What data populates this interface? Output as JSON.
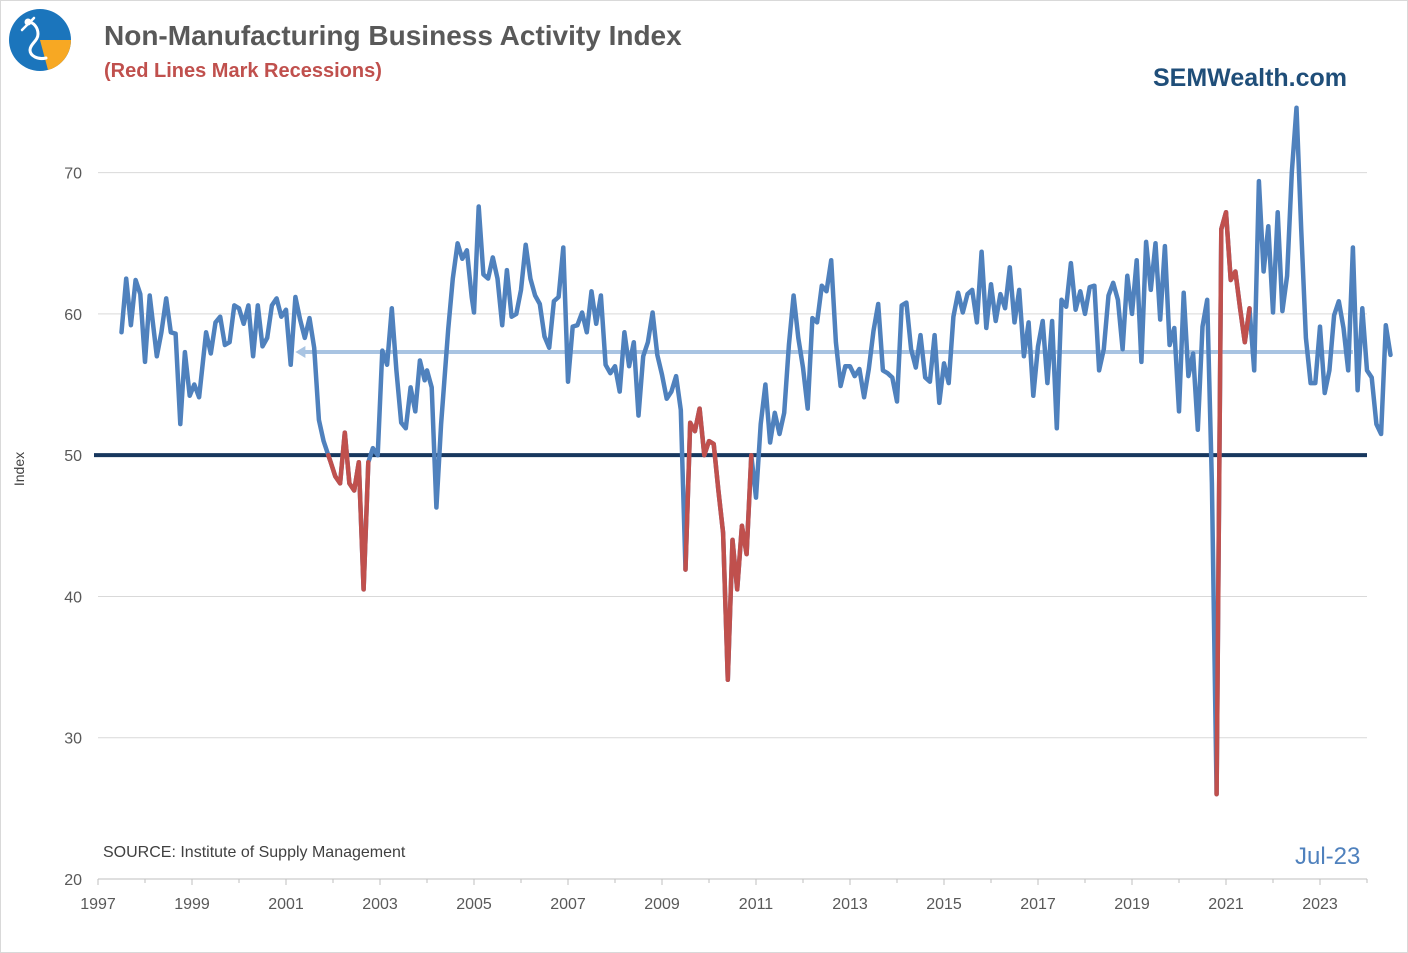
{
  "header": {
    "title": "Non-Manufacturing Business Activity Index",
    "subtitle": "(Red Lines Mark Recessions)",
    "brand": "SEMWealth.com"
  },
  "footer": {
    "source": "SOURCE:  Institute of Supply Management",
    "date_label": "Jul-23"
  },
  "colors": {
    "series": "#4f81bd",
    "recession": "#c0504d",
    "threshold": "#17375e",
    "average": "#a9c4e2",
    "grid": "#d9d9d9",
    "title": "#595959",
    "brand": "#1f4e79",
    "logo_circle": "#1b75bc",
    "logo_accent": "#f7a823"
  },
  "logo_icon": "semwealth-logo-icon",
  "chart_data": {
    "type": "line",
    "title": "Non-Manufacturing Business Activity Index",
    "subtitle": "(Red Lines Mark Recessions)",
    "xlabel": "",
    "ylabel": "Index",
    "xlim": [
      1997.0,
      2024.0
    ],
    "ylim": [
      20,
      75
    ],
    "yticks": [
      20,
      30,
      40,
      50,
      60,
      70
    ],
    "ytick_labels": [
      "20",
      "30",
      "40",
      "50",
      "60",
      "70"
    ],
    "xticks": [
      1997,
      1999,
      2001,
      2003,
      2005,
      2007,
      2009,
      2011,
      2013,
      2015,
      2017,
      2019,
      2021,
      2023
    ],
    "xtick_labels": [
      "1997",
      "1999",
      "2001",
      "2003",
      "2005",
      "2007",
      "2009",
      "2011",
      "2013",
      "2015",
      "2017",
      "2019",
      "2021",
      "2023"
    ],
    "grid": true,
    "reference_lines": [
      {
        "kind": "threshold",
        "y": 50
      },
      {
        "kind": "average",
        "y": 57.3,
        "x_start": 2001.2,
        "x_end": 2023.7,
        "arrow": "left"
      }
    ],
    "recessions": [
      [
        2001.2,
        2001.9
      ],
      [
        2007.9,
        2009.5
      ],
      [
        2020.1,
        2020.9
      ]
    ],
    "series": [
      {
        "points": [
          [
            1997.5,
            58.7
          ],
          [
            1997.6,
            62.5
          ],
          [
            1997.7,
            59.2
          ],
          [
            1997.8,
            62.4
          ],
          [
            1997.9,
            61.4
          ],
          [
            1998.0,
            56.6
          ],
          [
            1998.1,
            61.3
          ],
          [
            1998.25,
            57.0
          ],
          [
            1998.35,
            58.7
          ],
          [
            1998.45,
            61.1
          ],
          [
            1998.55,
            58.7
          ],
          [
            1998.65,
            58.6
          ],
          [
            1998.75,
            52.2
          ],
          [
            1998.85,
            57.3
          ],
          [
            1998.95,
            54.2
          ],
          [
            1999.05,
            55.0
          ],
          [
            1999.15,
            54.1
          ],
          [
            1999.3,
            58.7
          ],
          [
            1999.4,
            57.2
          ],
          [
            1999.5,
            59.4
          ],
          [
            1999.6,
            59.8
          ],
          [
            1999.7,
            57.8
          ],
          [
            1999.8,
            58.0
          ],
          [
            1999.9,
            60.6
          ],
          [
            2000.0,
            60.4
          ],
          [
            2000.1,
            59.3
          ],
          [
            2000.2,
            60.6
          ],
          [
            2000.3,
            57.0
          ],
          [
            2000.4,
            60.6
          ],
          [
            2000.5,
            57.7
          ],
          [
            2000.6,
            58.3
          ],
          [
            2000.7,
            60.6
          ],
          [
            2000.8,
            61.1
          ],
          [
            2000.9,
            59.8
          ],
          [
            2001.0,
            60.3
          ],
          [
            2001.1,
            56.4
          ],
          [
            2001.2,
            61.2
          ],
          [
            2001.3,
            59.6
          ],
          [
            2001.4,
            58.3
          ],
          [
            2001.5,
            59.7
          ],
          [
            2001.6,
            57.6
          ],
          [
            2001.7,
            52.5
          ],
          [
            2001.8,
            51.0
          ],
          [
            2001.9,
            50.0
          ],
          [
            2001.95,
            49.5
          ],
          [
            2002.05,
            48.5
          ],
          [
            2002.15,
            48.0
          ],
          [
            2002.25,
            51.6
          ],
          [
            2002.35,
            48.0
          ],
          [
            2002.45,
            47.5
          ],
          [
            2002.55,
            49.5
          ],
          [
            2002.65,
            40.5
          ],
          [
            2002.75,
            49.5
          ],
          [
            2002.85,
            50.5
          ],
          [
            2002.95,
            50.0
          ],
          [
            2003.05,
            57.4
          ],
          [
            2003.15,
            56.4
          ],
          [
            2003.25,
            60.4
          ],
          [
            2003.35,
            56.0
          ],
          [
            2003.45,
            52.3
          ],
          [
            2003.55,
            51.9
          ],
          [
            2003.65,
            54.8
          ],
          [
            2003.75,
            53.1
          ],
          [
            2003.85,
            56.7
          ],
          [
            2003.95,
            55.3
          ],
          [
            2004.0,
            56.0
          ],
          [
            2004.1,
            54.8
          ],
          [
            2004.2,
            46.3
          ],
          [
            2004.3,
            52.2
          ],
          [
            2004.45,
            58.9
          ],
          [
            2004.55,
            62.5
          ],
          [
            2004.65,
            65.0
          ],
          [
            2004.75,
            63.9
          ],
          [
            2004.85,
            64.5
          ],
          [
            2004.95,
            61.2
          ],
          [
            2005.0,
            60.1
          ],
          [
            2005.1,
            67.6
          ],
          [
            2005.2,
            62.8
          ],
          [
            2005.3,
            62.5
          ],
          [
            2005.4,
            64.0
          ],
          [
            2005.5,
            62.5
          ],
          [
            2005.6,
            59.2
          ],
          [
            2005.7,
            63.1
          ],
          [
            2005.8,
            59.8
          ],
          [
            2005.9,
            60.0
          ],
          [
            2006.0,
            61.7
          ],
          [
            2006.1,
            64.9
          ],
          [
            2006.2,
            62.5
          ],
          [
            2006.3,
            61.3
          ],
          [
            2006.4,
            60.7
          ],
          [
            2006.5,
            58.4
          ],
          [
            2006.6,
            57.6
          ],
          [
            2006.7,
            60.9
          ],
          [
            2006.8,
            61.2
          ],
          [
            2006.9,
            64.7
          ],
          [
            2007.0,
            55.2
          ],
          [
            2007.1,
            59.1
          ],
          [
            2007.2,
            59.2
          ],
          [
            2007.3,
            60.1
          ],
          [
            2007.4,
            58.7
          ],
          [
            2007.5,
            61.6
          ],
          [
            2007.6,
            59.3
          ],
          [
            2007.7,
            61.3
          ],
          [
            2007.8,
            56.4
          ],
          [
            2007.9,
            55.8
          ],
          [
            2008.0,
            56.3
          ],
          [
            2008.1,
            54.5
          ],
          [
            2008.2,
            58.7
          ],
          [
            2008.3,
            56.3
          ],
          [
            2008.4,
            58.0
          ],
          [
            2008.5,
            52.8
          ],
          [
            2008.6,
            57.0
          ],
          [
            2008.7,
            58.0
          ],
          [
            2008.8,
            60.1
          ],
          [
            2008.9,
            57.1
          ],
          [
            2009.0,
            55.7
          ],
          [
            2009.1,
            54.0
          ],
          [
            2009.2,
            54.5
          ],
          [
            2009.3,
            55.6
          ],
          [
            2009.4,
            53.2
          ],
          [
            2009.5,
            41.9
          ],
          [
            2009.6,
            52.3
          ],
          [
            2009.7,
            51.7
          ],
          [
            2009.8,
            53.3
          ],
          [
            2009.9,
            50.0
          ],
          [
            2010.0,
            51.0
          ],
          [
            2010.1,
            50.8
          ],
          [
            2010.2,
            47.5
          ],
          [
            2010.3,
            44.5
          ],
          [
            2010.4,
            34.1
          ],
          [
            2010.5,
            44.0
          ],
          [
            2010.6,
            40.5
          ],
          [
            2010.7,
            45.0
          ],
          [
            2010.8,
            43.0
          ],
          [
            2010.9,
            50.0
          ],
          [
            2011.0,
            47.0
          ],
          [
            2011.1,
            52.2
          ],
          [
            2011.2,
            55.0
          ],
          [
            2011.3,
            50.9
          ],
          [
            2011.4,
            53.0
          ],
          [
            2011.5,
            51.5
          ],
          [
            2011.6,
            53.0
          ],
          [
            2011.7,
            57.8
          ],
          [
            2011.8,
            61.3
          ],
          [
            2011.9,
            58.3
          ],
          [
            2012.0,
            56.2
          ],
          [
            2012.1,
            53.3
          ],
          [
            2012.2,
            59.7
          ],
          [
            2012.3,
            59.4
          ],
          [
            2012.4,
            62.0
          ],
          [
            2012.5,
            61.6
          ],
          [
            2012.6,
            63.8
          ],
          [
            2012.7,
            58.0
          ],
          [
            2012.8,
            54.9
          ],
          [
            2012.9,
            56.3
          ],
          [
            2013.0,
            56.3
          ],
          [
            2013.1,
            55.6
          ],
          [
            2013.2,
            56.1
          ],
          [
            2013.3,
            54.1
          ],
          [
            2013.4,
            56.1
          ],
          [
            2013.5,
            58.8
          ],
          [
            2013.6,
            60.7
          ],
          [
            2013.7,
            56.0
          ],
          [
            2013.8,
            55.8
          ],
          [
            2013.9,
            55.5
          ],
          [
            2014.0,
            53.8
          ],
          [
            2014.1,
            60.6
          ],
          [
            2014.2,
            60.8
          ],
          [
            2014.3,
            57.5
          ],
          [
            2014.4,
            56.2
          ],
          [
            2014.5,
            58.5
          ],
          [
            2014.6,
            55.5
          ],
          [
            2014.7,
            55.2
          ],
          [
            2014.8,
            58.5
          ],
          [
            2014.9,
            53.7
          ],
          [
            2015.0,
            56.5
          ],
          [
            2015.1,
            55.1
          ],
          [
            2015.2,
            59.8
          ],
          [
            2015.3,
            61.5
          ],
          [
            2015.4,
            60.1
          ],
          [
            2015.5,
            61.4
          ],
          [
            2015.6,
            61.7
          ],
          [
            2015.7,
            59.4
          ],
          [
            2015.8,
            64.4
          ],
          [
            2015.9,
            59.0
          ],
          [
            2016.0,
            62.1
          ],
          [
            2016.1,
            59.5
          ],
          [
            2016.2,
            61.4
          ],
          [
            2016.3,
            60.4
          ],
          [
            2016.4,
            63.3
          ],
          [
            2016.5,
            59.4
          ],
          [
            2016.6,
            61.7
          ],
          [
            2016.7,
            57.0
          ],
          [
            2016.8,
            59.4
          ],
          [
            2016.9,
            54.2
          ],
          [
            2017.0,
            57.7
          ],
          [
            2017.1,
            59.5
          ],
          [
            2017.2,
            55.1
          ],
          [
            2017.3,
            59.5
          ],
          [
            2017.4,
            51.9
          ],
          [
            2017.5,
            61.0
          ],
          [
            2017.6,
            60.5
          ],
          [
            2017.7,
            63.6
          ],
          [
            2017.8,
            60.3
          ],
          [
            2017.9,
            61.6
          ],
          [
            2018.0,
            60.0
          ],
          [
            2018.1,
            61.9
          ],
          [
            2018.2,
            62.0
          ],
          [
            2018.3,
            56.0
          ],
          [
            2018.4,
            57.5
          ],
          [
            2018.5,
            61.3
          ],
          [
            2018.6,
            62.2
          ],
          [
            2018.7,
            61.0
          ],
          [
            2018.8,
            57.5
          ],
          [
            2018.9,
            62.7
          ],
          [
            2019.0,
            60.0
          ],
          [
            2019.1,
            63.8
          ],
          [
            2019.2,
            56.6
          ],
          [
            2019.3,
            65.1
          ],
          [
            2019.4,
            61.7
          ],
          [
            2019.5,
            65.0
          ],
          [
            2019.6,
            59.6
          ],
          [
            2019.7,
            64.8
          ],
          [
            2019.8,
            57.8
          ],
          [
            2019.9,
            59.0
          ],
          [
            2020.0,
            53.1
          ],
          [
            2020.1,
            61.5
          ],
          [
            2020.2,
            55.6
          ],
          [
            2020.3,
            57.2
          ],
          [
            2020.4,
            51.8
          ],
          [
            2020.5,
            59.1
          ],
          [
            2020.6,
            61.0
          ],
          [
            2020.7,
            48.0
          ],
          [
            2020.8,
            26.0
          ],
          [
            2020.9,
            66.0
          ],
          [
            2021.0,
            67.2
          ],
          [
            2021.1,
            62.4
          ],
          [
            2021.2,
            63.0
          ],
          [
            2021.3,
            60.4
          ],
          [
            2021.4,
            58.0
          ],
          [
            2021.5,
            60.4
          ],
          [
            2021.6,
            56.0
          ],
          [
            2021.7,
            69.4
          ],
          [
            2021.8,
            63.0
          ],
          [
            2021.9,
            66.2
          ],
          [
            2022.0,
            60.1
          ],
          [
            2022.1,
            67.2
          ],
          [
            2022.2,
            60.2
          ],
          [
            2022.3,
            62.7
          ],
          [
            2022.4,
            70.0
          ],
          [
            2022.5,
            74.6
          ],
          [
            2022.6,
            66.0
          ],
          [
            2022.7,
            58.3
          ],
          [
            2022.8,
            55.1
          ],
          [
            2022.9,
            55.1
          ],
          [
            2023.0,
            59.1
          ],
          [
            2023.1,
            54.4
          ],
          [
            2023.2,
            56.0
          ],
          [
            2023.3,
            59.9
          ],
          [
            2023.4,
            60.9
          ],
          [
            2023.5,
            59.0
          ],
          [
            2023.6,
            56.0
          ],
          [
            2023.7,
            64.7
          ],
          [
            2023.8,
            54.6
          ],
          [
            2023.9,
            60.4
          ],
          [
            2024.0,
            56.0
          ],
          [
            2024.1,
            55.5
          ],
          [
            2024.2,
            52.2
          ],
          [
            2024.3,
            51.5
          ],
          [
            2024.4,
            59.2
          ],
          [
            2024.5,
            57.1
          ]
        ]
      }
    ]
  }
}
